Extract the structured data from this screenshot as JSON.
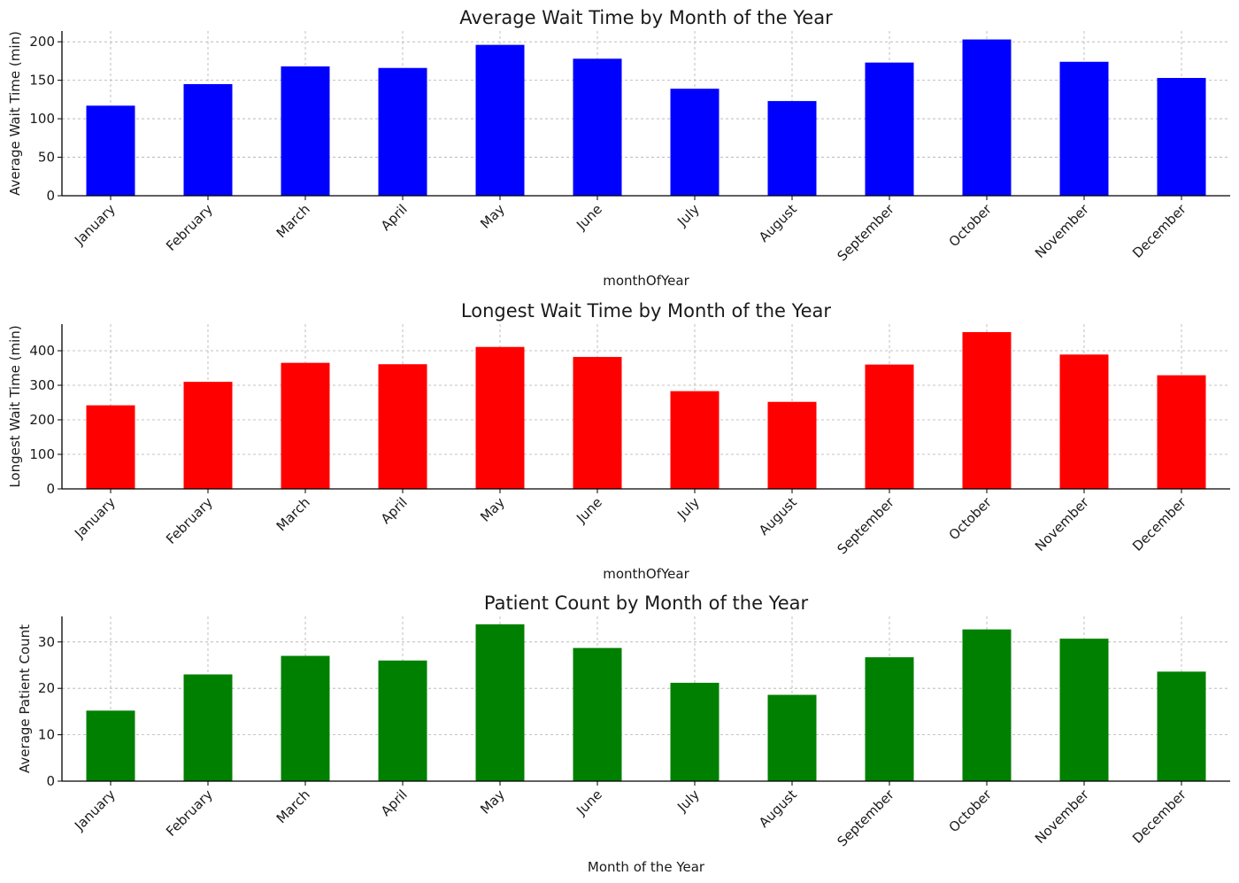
{
  "chart_data": [
    {
      "type": "bar",
      "title": "Average Wait Time by Month of the Year",
      "xlabel": "monthOfYear",
      "ylabel": "Average Wait Time (min)",
      "categories": [
        "January",
        "February",
        "March",
        "April",
        "May",
        "June",
        "July",
        "August",
        "September",
        "October",
        "November",
        "December"
      ],
      "values": [
        117,
        145,
        168,
        166,
        196,
        178,
        139,
        123,
        173,
        203,
        174,
        153
      ],
      "yticks": [
        0,
        50,
        100,
        150,
        200
      ],
      "ylim": [
        0,
        214
      ],
      "color": "#0000ff",
      "grid": true
    },
    {
      "type": "bar",
      "title": "Longest Wait Time by Month of the Year",
      "xlabel": "monthOfYear",
      "ylabel": "Longest Wait Time (min)",
      "categories": [
        "January",
        "February",
        "March",
        "April",
        "May",
        "June",
        "July",
        "August",
        "September",
        "October",
        "November",
        "December"
      ],
      "values": [
        242,
        310,
        365,
        361,
        411,
        382,
        283,
        252,
        360,
        454,
        389,
        329
      ],
      "yticks": [
        0,
        100,
        200,
        300,
        400
      ],
      "ylim": [
        0,
        477
      ],
      "color": "#ff0000",
      "grid": true
    },
    {
      "type": "bar",
      "title": "Patient Count by Month of the Year",
      "xlabel": "Month of the Year",
      "ylabel": "Average Patient Count",
      "categories": [
        "January",
        "February",
        "March",
        "April",
        "May",
        "June",
        "July",
        "August",
        "September",
        "October",
        "November",
        "December"
      ],
      "values": [
        15.2,
        23.0,
        27.0,
        26.0,
        33.8,
        28.7,
        21.2,
        18.6,
        26.7,
        32.7,
        30.7,
        23.6
      ],
      "yticks": [
        0,
        10,
        20,
        30
      ],
      "ylim": [
        0,
        35.5
      ],
      "color": "#008000",
      "grid": true
    }
  ]
}
